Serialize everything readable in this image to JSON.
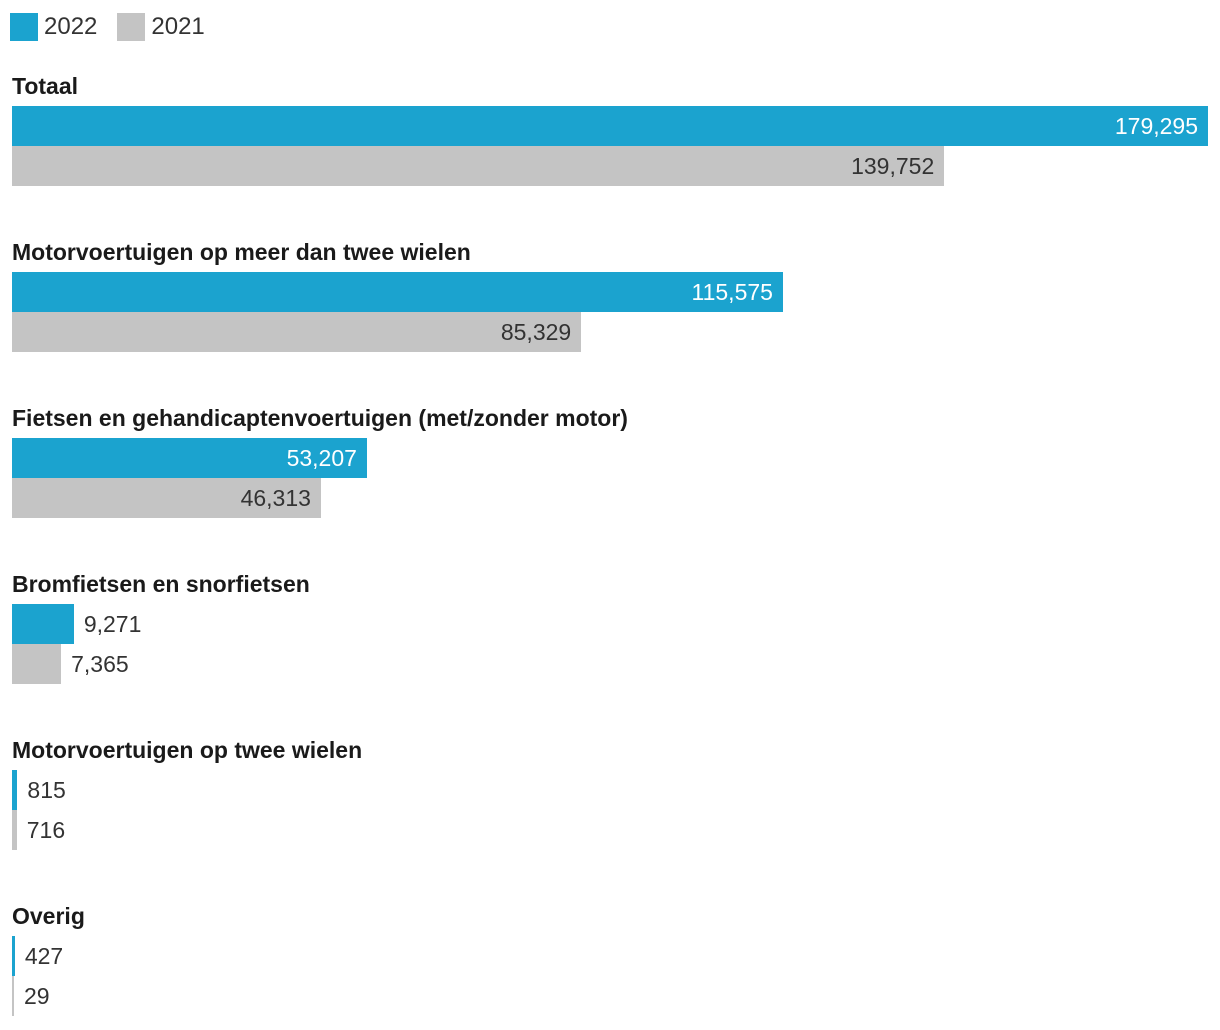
{
  "chart_data": {
    "type": "bar",
    "orientation": "horizontal",
    "series": [
      {
        "name": "2022",
        "color": "#1ba3cf",
        "values": [
          179295,
          115575,
          53207,
          9271,
          815,
          427
        ]
      },
      {
        "name": "2021",
        "color": "#c4c4c4",
        "values": [
          139752,
          85329,
          46313,
          7365,
          716,
          29
        ]
      }
    ],
    "categories": [
      "Totaal",
      "Motorvoertuigen op meer dan twee wielen",
      "Fietsen en gehandicaptenvoertuigen (met/zonder motor)",
      "Bromfietsen en snorfietsen",
      "Motorvoertuigen op twee wielen",
      "Overig"
    ],
    "labels_2022": [
      "179,295",
      "115,575",
      "53,207",
      "9,271",
      "815",
      "427"
    ],
    "labels_2021": [
      "139,752",
      "85,329",
      "46,313",
      "7,365",
      "716",
      "29"
    ],
    "xlim": [
      0,
      179295
    ],
    "legend": "top-left",
    "grid": false,
    "title": "",
    "xlabel": "",
    "ylabel": ""
  }
}
